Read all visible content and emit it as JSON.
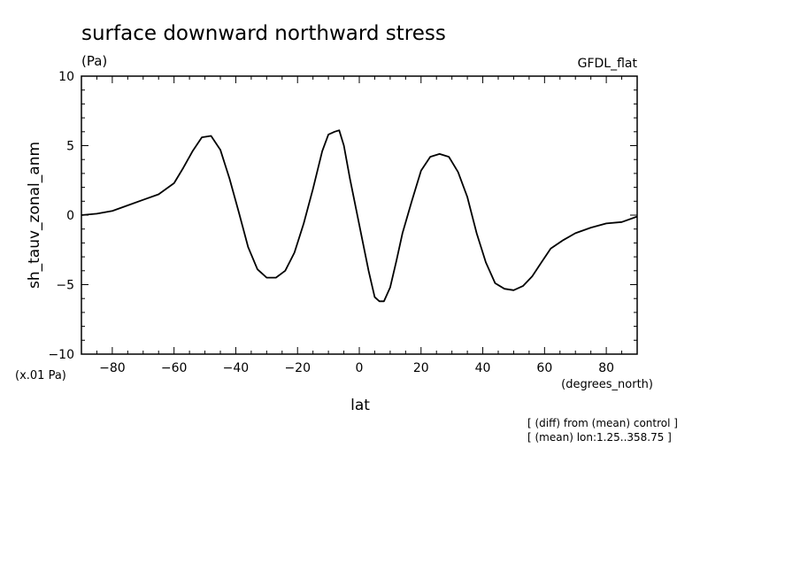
{
  "chart_data": {
    "type": "line",
    "title": "surface downward northward stress",
    "units_label": "(Pa)",
    "model_label": "GFDL_flat",
    "ylabel": "sh_tauv_zonal_anm",
    "yscale_note": "(x.01 Pa)",
    "xlabel": "lat",
    "xunits": "(degrees_north)",
    "xlim": [
      -90,
      90
    ],
    "ylim": [
      -10,
      10
    ],
    "xticks": [
      -80,
      -60,
      -40,
      -20,
      0,
      20,
      40,
      60,
      80
    ],
    "yticks": [
      -10,
      -5,
      0,
      5,
      10
    ],
    "grid": false,
    "notes": [
      "[ (diff) from (mean) control ]",
      "[ (mean) lon:1.25..358.75 ]"
    ],
    "series": [
      {
        "x": [
          -90,
          -85,
          -80,
          -75,
          -70,
          -65,
          -60,
          -57,
          -54,
          -51,
          -48,
          -45,
          -42,
          -39,
          -36,
          -33,
          -30,
          -27,
          -24,
          -21,
          -18,
          -15,
          -12,
          -10,
          -8,
          -6.5,
          -5,
          -3,
          -1,
          1,
          3,
          5,
          6.5,
          8,
          10,
          12,
          14,
          17,
          20,
          23,
          26,
          29,
          32,
          35,
          38,
          41,
          44,
          47,
          50,
          53,
          56,
          59,
          62,
          66,
          70,
          75,
          80,
          85,
          90
        ],
        "y": [
          0,
          0.1,
          0.3,
          0.7,
          1.1,
          1.5,
          2.3,
          3.4,
          4.6,
          5.6,
          5.7,
          4.7,
          2.6,
          0.2,
          -2.3,
          -3.9,
          -4.5,
          -4.5,
          -4.0,
          -2.7,
          -0.6,
          1.9,
          4.6,
          5.8,
          6.0,
          6.1,
          5.0,
          2.6,
          0.4,
          -1.8,
          -4.0,
          -5.9,
          -6.2,
          -6.2,
          -5.2,
          -3.3,
          -1.3,
          1.0,
          3.2,
          4.2,
          4.4,
          4.2,
          3.1,
          1.3,
          -1.3,
          -3.4,
          -4.9,
          -5.3,
          -5.4,
          -5.1,
          -4.4,
          -3.4,
          -2.4,
          -1.8,
          -1.3,
          -0.9,
          -0.6,
          -0.5,
          -0.1
        ]
      }
    ]
  }
}
